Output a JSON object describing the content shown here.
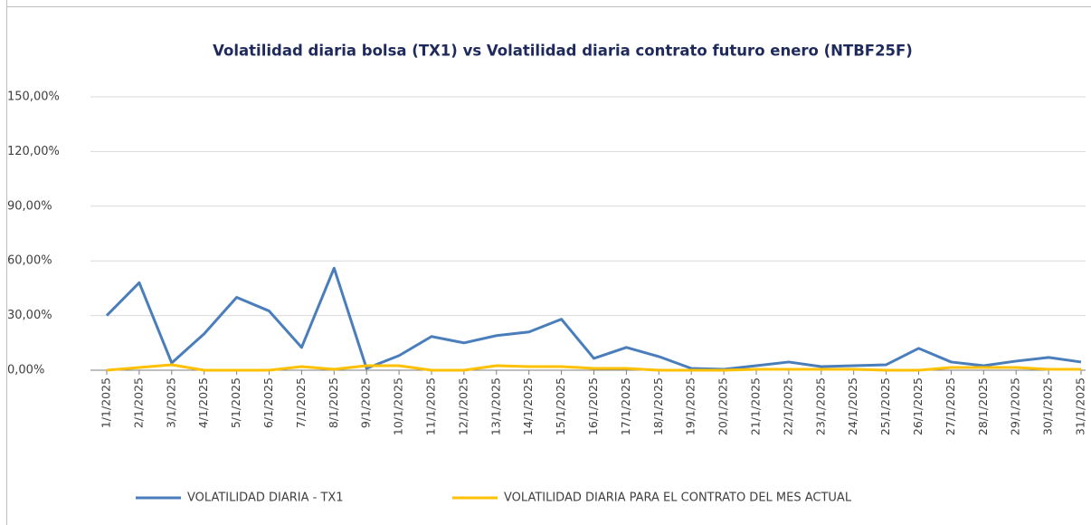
{
  "chart_data": {
    "type": "line",
    "title": "Volatilidad diaria bolsa (TX1) vs Volatilidad diaria contrato futuro enero (NTBF25F)",
    "categories": [
      "1/1/2025",
      "2/1/2025",
      "3/1/2025",
      "4/1/2025",
      "5/1/2025",
      "6/1/2025",
      "7/1/2025",
      "8/1/2025",
      "9/1/2025",
      "10/1/2025",
      "11/1/2025",
      "12/1/2025",
      "13/1/2025",
      "14/1/2025",
      "15/1/2025",
      "16/1/2025",
      "17/1/2025",
      "18/1/2025",
      "19/1/2025",
      "20/1/2025",
      "21/1/2025",
      "22/1/2025",
      "23/1/2025",
      "24/1/2025",
      "25/1/2025",
      "26/1/2025",
      "27/1/2025",
      "28/1/2025",
      "29/1/2025",
      "30/1/2025",
      "31/1/2025"
    ],
    "series": [
      {
        "name": "VOLATILIDAD DIARIA - TX1",
        "color": "#4a7ebb",
        "values": [
          30,
          48,
          4,
          20,
          40,
          32.5,
          12.5,
          56,
          1,
          8,
          18.5,
          15,
          19,
          21,
          28,
          6.5,
          12.5,
          7.5,
          1,
          0.5,
          2.5,
          4.5,
          2,
          2.5,
          3,
          12,
          4.5,
          2.5,
          5,
          7,
          4.5
        ]
      },
      {
        "name": "VOLATILIDAD DIARIA PARA EL CONTRATO DEL MES ACTUAL",
        "color": "#ffc000",
        "values": [
          0,
          1.5,
          3,
          0,
          0,
          0,
          2,
          0.5,
          2.5,
          2.5,
          0,
          0,
          2.5,
          2,
          2,
          1,
          1,
          0,
          0,
          0,
          0.5,
          0.5,
          0.5,
          0.5,
          0,
          0,
          1.5,
          1.5,
          1.5,
          0.5,
          0.5
        ]
      }
    ],
    "ylim": [
      0,
      150
    ],
    "yticks": [
      {
        "value": 0,
        "label": "0,00%"
      },
      {
        "value": 30,
        "label": "30,00%"
      },
      {
        "value": 60,
        "label": "60,00%"
      },
      {
        "value": 90,
        "label": "90,00%"
      },
      {
        "value": 120,
        "label": "120,00%"
      },
      {
        "value": 150,
        "label": "150,00%"
      }
    ],
    "grid": true,
    "legend": "bottom"
  }
}
